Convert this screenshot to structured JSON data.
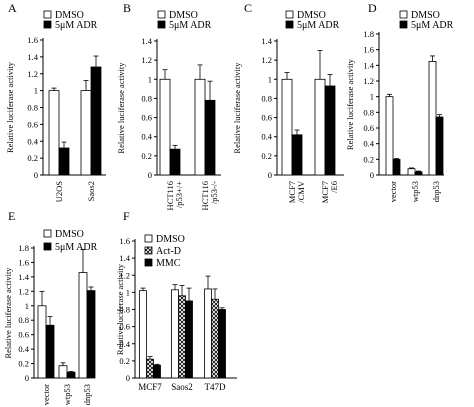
{
  "chart_data": [
    {
      "panel": "A",
      "type": "bar",
      "ylabel": "Relative luciferase activity",
      "ylim": [
        0,
        1.6
      ],
      "yticks": [
        "0",
        "0.2",
        "0.4",
        "0.6",
        "0.8",
        "1",
        "1.2",
        "1.4",
        "1.6"
      ],
      "categories": [
        "U2OS",
        "Saos2"
      ],
      "legend": [
        "DMSO",
        "5μM ADR"
      ],
      "series": [
        {
          "name": "DMSO",
          "style": "white",
          "values": [
            1.0,
            1.0
          ],
          "errors": [
            0.03,
            0.12
          ]
        },
        {
          "name": "5μM ADR",
          "style": "black",
          "values": [
            0.32,
            1.28
          ],
          "errors": [
            0.07,
            0.13
          ]
        }
      ]
    },
    {
      "panel": "B",
      "type": "bar",
      "ylabel": "Relative luciferase activity",
      "ylim": [
        0,
        1.4
      ],
      "yticks": [
        "0",
        "0.2",
        "0.4",
        "0.6",
        "0.8",
        "1",
        "1.2",
        "1.4"
      ],
      "categories": [
        "HCT116 /p53+/+",
        "HCT116 /p53-/-"
      ],
      "legend": [
        "DMSO",
        "5μM ADR"
      ],
      "series": [
        {
          "name": "DMSO",
          "style": "white",
          "values": [
            1.0,
            1.0
          ],
          "errors": [
            0.1,
            0.15
          ]
        },
        {
          "name": "5μM ADR",
          "style": "black",
          "values": [
            0.27,
            0.78
          ],
          "errors": [
            0.04,
            0.2
          ]
        }
      ]
    },
    {
      "panel": "C",
      "type": "bar",
      "ylabel": "Relative luciferase activity",
      "ylim": [
        0,
        1.4
      ],
      "yticks": [
        "0",
        "0.2",
        "0.4",
        "0.6",
        "0.8",
        "1",
        "1.2",
        "1.4"
      ],
      "categories": [
        "MCF7 /CMV",
        "MCF7 /E6"
      ],
      "legend": [
        "DMSO",
        "5μM ADR"
      ],
      "series": [
        {
          "name": "DMSO",
          "style": "white",
          "values": [
            1.0,
            1.0
          ],
          "errors": [
            0.07,
            0.3
          ]
        },
        {
          "name": "5μM ADR",
          "style": "black",
          "values": [
            0.42,
            0.93
          ],
          "errors": [
            0.05,
            0.12
          ]
        }
      ]
    },
    {
      "panel": "D",
      "type": "bar",
      "ylabel": "Relative luciferase activity",
      "ylim": [
        0,
        1.8
      ],
      "yticks": [
        "0",
        "0.2",
        "0.4",
        "0.6",
        "0.8",
        "1",
        "1.2",
        "1.4",
        "1.6",
        "1.8"
      ],
      "categories": [
        "vector",
        "wtp53",
        "dnp53"
      ],
      "legend": [
        "DMSO",
        "5μM ADR"
      ],
      "series": [
        {
          "name": "DMSO",
          "style": "white",
          "values": [
            1.0,
            0.08,
            1.45
          ],
          "errors": [
            0.03,
            0.01,
            0.07
          ]
        },
        {
          "name": "5μM ADR",
          "style": "black",
          "values": [
            0.2,
            0.04,
            0.74
          ],
          "errors": [
            0.01,
            0.01,
            0.03
          ]
        }
      ]
    },
    {
      "panel": "E",
      "type": "bar",
      "ylabel": "Relative luciferase activity",
      "ylim": [
        0,
        1.8
      ],
      "yticks": [
        "0",
        "0.2",
        "0.4",
        "0.6",
        "0.8",
        "1",
        "1.2",
        "1.4",
        "1.6",
        "1.8"
      ],
      "categories": [
        "vector",
        "wtp53",
        "dnp53"
      ],
      "legend": [
        "DMSO",
        "5μM ADR"
      ],
      "series": [
        {
          "name": "DMSO",
          "style": "white",
          "values": [
            1.0,
            0.17,
            1.46
          ],
          "errors": [
            0.2,
            0.04,
            0.32
          ]
        },
        {
          "name": "5μM ADR",
          "style": "black",
          "values": [
            0.73,
            0.08,
            1.21
          ],
          "errors": [
            0.12,
            0.01,
            0.05
          ]
        }
      ]
    },
    {
      "panel": "F",
      "type": "bar",
      "ylabel": "Relative luciferase activity",
      "ylim": [
        0,
        1.6
      ],
      "yticks": [
        "0",
        "0.2",
        "0.4",
        "0.6",
        "0.8",
        "1",
        "1.2",
        "1.4",
        "1.6"
      ],
      "categories": [
        "MCF7",
        "Saos2",
        "T47D"
      ],
      "legend": [
        "DMSO",
        "Act-D",
        "MMC"
      ],
      "series": [
        {
          "name": "DMSO",
          "style": "white",
          "values": [
            1.02,
            1.03,
            1.04
          ],
          "errors": [
            0.03,
            0.06,
            0.15
          ]
        },
        {
          "name": "Act-D",
          "style": "hatch",
          "values": [
            0.22,
            0.96,
            0.92
          ],
          "errors": [
            0.03,
            0.12,
            0.12
          ]
        },
        {
          "name": "MMC",
          "style": "black",
          "values": [
            0.15,
            0.9,
            0.8
          ],
          "errors": [
            0.01,
            0.15,
            0.02
          ]
        }
      ]
    }
  ]
}
